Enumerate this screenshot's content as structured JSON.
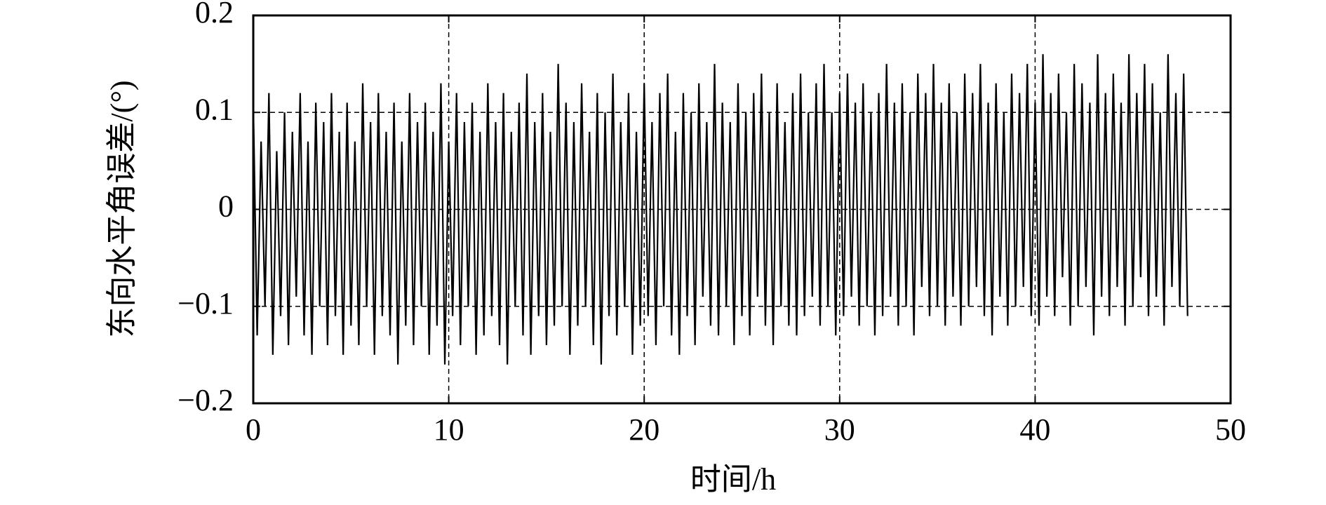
{
  "chart_data": {
    "type": "line",
    "xlabel": "时间/h",
    "ylabel": "东向水平角误差/(°)",
    "color": "#000000",
    "grid": true,
    "xlim": [
      0,
      50
    ],
    "xticks": [
      0,
      10,
      20,
      30,
      40,
      50
    ],
    "ylim": [
      -0.2,
      0.2
    ],
    "yticks": [
      {
        "value": -0.2,
        "label": "−0.2"
      },
      {
        "value": -0.1,
        "label": "−0.1"
      },
      0,
      0.1,
      0.2
    ],
    "x": [
      0,
      0.2,
      0.4,
      0.6,
      0.8,
      1,
      1.2,
      1.4,
      1.6,
      1.8,
      2,
      2.2,
      2.4,
      2.6,
      2.8,
      3,
      3.2,
      3.4,
      3.6,
      3.8,
      4,
      4.2,
      4.4,
      4.6,
      4.8,
      5,
      5.2,
      5.4,
      5.6,
      5.8,
      6,
      6.2,
      6.4,
      6.6,
      6.8,
      7,
      7.2,
      7.4,
      7.6,
      7.8,
      8,
      8.2,
      8.4,
      8.6,
      8.8,
      9,
      9.2,
      9.4,
      9.6,
      9.8,
      10,
      10.2,
      10.4,
      10.6,
      10.8,
      11,
      11.2,
      11.4,
      11.6,
      11.8,
      12,
      12.2,
      12.4,
      12.6,
      12.8,
      13,
      13.2,
      13.4,
      13.6,
      13.8,
      14,
      14.2,
      14.4,
      14.6,
      14.8,
      15,
      15.2,
      15.4,
      15.6,
      15.8,
      16,
      16.2,
      16.4,
      16.6,
      16.8,
      17,
      17.2,
      17.4,
      17.6,
      17.8,
      18,
      18.2,
      18.4,
      18.6,
      18.8,
      19,
      19.2,
      19.4,
      19.6,
      19.8,
      20,
      20.2,
      20.4,
      20.6,
      20.8,
      21,
      21.2,
      21.4,
      21.6,
      21.8,
      22,
      22.2,
      22.4,
      22.6,
      22.8,
      23,
      23.2,
      23.4,
      23.6,
      23.8,
      24,
      24.2,
      24.4,
      24.6,
      24.8,
      25,
      25.2,
      25.4,
      25.6,
      25.8,
      26,
      26.2,
      26.4,
      26.6,
      26.8,
      27,
      27.2,
      27.4,
      27.6,
      27.8,
      28,
      28.2,
      28.4,
      28.6,
      28.8,
      29,
      29.2,
      29.4,
      29.6,
      29.8,
      30,
      30.2,
      30.4,
      30.6,
      30.8,
      31,
      31.2,
      31.4,
      31.6,
      31.8,
      32,
      32.2,
      32.4,
      32.6,
      32.8,
      33,
      33.2,
      33.4,
      33.6,
      33.8,
      34,
      34.2,
      34.4,
      34.6,
      34.8,
      35,
      35.2,
      35.4,
      35.6,
      35.8,
      36,
      36.2,
      36.4,
      36.6,
      36.8,
      37,
      37.2,
      37.4,
      37.6,
      37.8,
      38,
      38.2,
      38.4,
      38.6,
      38.8,
      39,
      39.2,
      39.4,
      39.6,
      39.8,
      40,
      40.2,
      40.4,
      40.6,
      40.8,
      41,
      41.2,
      41.4,
      41.6,
      41.8,
      42,
      42.2,
      42.4,
      42.6,
      42.8,
      43,
      43.2,
      43.4,
      43.6,
      43.8,
      44,
      44.2,
      44.4,
      44.6,
      44.8,
      45,
      45.2,
      45.4,
      45.6,
      45.8,
      46,
      46.2,
      46.4,
      46.6,
      46.8,
      47,
      47.2,
      47.4,
      47.6,
      47.8
    ],
    "values": [
      0.11,
      -0.13,
      0.07,
      -0.1,
      0.12,
      -0.15,
      0.06,
      -0.11,
      0.1,
      -0.14,
      0.08,
      -0.09,
      0.12,
      -0.13,
      0.07,
      -0.15,
      0.11,
      -0.1,
      0.09,
      -0.14,
      0.12,
      -0.11,
      0.08,
      -0.15,
      0.11,
      -0.12,
      0.07,
      -0.14,
      0.13,
      -0.1,
      0.09,
      -0.15,
      0.12,
      -0.11,
      0.08,
      -0.13,
      0.11,
      -0.16,
      0.07,
      -0.12,
      0.12,
      -0.14,
      0.09,
      -0.1,
      0.11,
      -0.15,
      0.08,
      -0.12,
      0.13,
      -0.16,
      0.07,
      -0.11,
      0.12,
      -0.14,
      0.09,
      -0.1,
      0.11,
      -0.15,
      0.08,
      -0.13,
      0.13,
      -0.11,
      0.09,
      -0.14,
      0.12,
      -0.16,
      0.08,
      -0.1,
      0.11,
      -0.13,
      0.14,
      -0.15,
      0.09,
      -0.11,
      0.12,
      -0.14,
      0.08,
      -0.12,
      0.15,
      -0.1,
      0.11,
      -0.15,
      0.09,
      -0.12,
      0.13,
      -0.1,
      0.08,
      -0.14,
      0.12,
      -0.16,
      0.1,
      -0.11,
      0.14,
      -0.13,
      0.09,
      -0.1,
      0.12,
      -0.15,
      0.08,
      -0.12,
      0.13,
      -0.11,
      0.09,
      -0.14,
      0.12,
      -0.1,
      0.14,
      -0.13,
      0.08,
      -0.15,
      0.12,
      -0.11,
      0.1,
      -0.14,
      0.13,
      -0.09,
      0.09,
      -0.12,
      0.15,
      -0.13,
      0.11,
      -0.1,
      0.09,
      -0.14,
      0.13,
      -0.11,
      0.1,
      -0.13,
      0.12,
      -0.09,
      0.14,
      -0.12,
      0.1,
      -0.14,
      0.13,
      -0.1,
      0.09,
      -0.12,
      0.12,
      -0.13,
      0.14,
      -0.11,
      0.1,
      -0.09,
      0.13,
      -0.12,
      0.15,
      -0.1,
      0.1,
      -0.13,
      0.12,
      -0.11,
      0.14,
      -0.09,
      0.11,
      -0.12,
      0.13,
      -0.1,
      0.1,
      -0.13,
      0.12,
      -0.11,
      0.15,
      -0.09,
      0.11,
      -0.12,
      0.13,
      -0.1,
      0.1,
      -0.13,
      0.14,
      -0.08,
      0.12,
      -0.11,
      0.15,
      -0.1,
      0.11,
      -0.12,
      0.13,
      -0.09,
      0.1,
      -0.12,
      0.14,
      -0.1,
      0.12,
      -0.08,
      0.15,
      -0.11,
      0.11,
      -0.13,
      0.13,
      -0.09,
      0.1,
      -0.12,
      0.14,
      -0.1,
      0.12,
      -0.08,
      0.15,
      -0.11,
      0.11,
      -0.12,
      0.16,
      -0.09,
      0.12,
      -0.11,
      0.14,
      -0.07,
      0.1,
      -0.12,
      0.15,
      -0.1,
      0.13,
      -0.08,
      0.11,
      -0.13,
      0.16,
      -0.09,
      0.12,
      -0.11,
      0.14,
      -0.08,
      0.11,
      -0.12,
      0.16,
      -0.1,
      0.12,
      -0.07,
      0.15,
      -0.11,
      0.13,
      -0.09,
      0.1,
      -0.12,
      0.16,
      -0.08,
      0.12,
      -0.1,
      0.14,
      -0.11
    ]
  }
}
